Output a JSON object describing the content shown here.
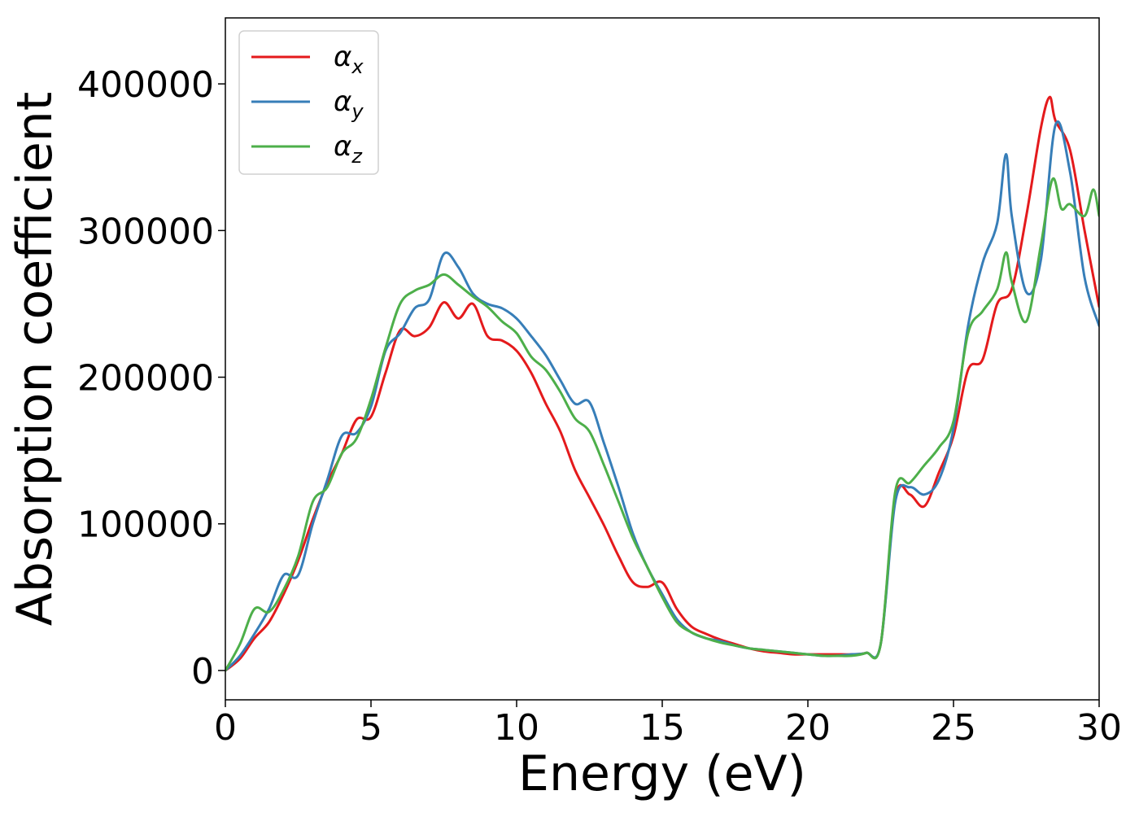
{
  "chart_data": {
    "type": "line",
    "title": "",
    "xlabel": "Energy (eV)",
    "ylabel": "Absorption coefficient",
    "xlim": [
      0,
      30
    ],
    "ylim": [
      -20000,
      445000
    ],
    "xticks": [
      0,
      5,
      10,
      15,
      20,
      25,
      30
    ],
    "yticks": [
      0,
      100000,
      200000,
      300000,
      400000
    ],
    "grid": false,
    "legend_position": "top-left",
    "series": [
      {
        "name": "α",
        "subscript": "x",
        "color": "#e41a1c",
        "x": [
          0,
          0.5,
          1,
          1.5,
          2,
          2.5,
          3,
          3.5,
          4,
          4.5,
          5,
          5.5,
          6,
          6.5,
          7,
          7.5,
          8,
          8.5,
          9,
          9.5,
          10,
          10.5,
          11,
          11.5,
          12,
          12.5,
          13,
          13.5,
          14,
          14.5,
          15,
          15.5,
          16,
          16.5,
          17,
          17.5,
          18,
          18.5,
          19,
          19.5,
          20,
          20.5,
          21,
          21.5,
          22,
          22.5,
          23,
          23.5,
          24,
          24.5,
          25,
          25.5,
          26,
          26.5,
          27,
          27.5,
          28,
          28.3,
          28.5,
          29,
          29.5,
          30
        ],
        "values": [
          0,
          8000,
          22000,
          33000,
          52000,
          75000,
          103000,
          128000,
          148000,
          171000,
          173000,
          203000,
          232000,
          228000,
          234000,
          251000,
          240000,
          250000,
          228000,
          225000,
          218000,
          203000,
          182000,
          163000,
          137000,
          118000,
          99000,
          78000,
          60000,
          57000,
          60000,
          42000,
          30000,
          25000,
          21000,
          18000,
          15000,
          13000,
          12000,
          11000,
          11000,
          11000,
          11000,
          11000,
          12000,
          18000,
          118000,
          120000,
          112000,
          135000,
          160000,
          205000,
          212000,
          250000,
          260000,
          310000,
          370000,
          391000,
          375000,
          355000,
          300000,
          248000
        ]
      },
      {
        "name": "α",
        "subscript": "y",
        "color": "#377eb8",
        "x": [
          0,
          0.5,
          1,
          1.5,
          2,
          2.5,
          3,
          3.5,
          4,
          4.5,
          5,
          5.5,
          6,
          6.5,
          7,
          7.5,
          8,
          8.5,
          9,
          9.5,
          10,
          10.5,
          11,
          11.5,
          12,
          12.5,
          13,
          13.5,
          14,
          14.5,
          15,
          15.5,
          16,
          16.5,
          17,
          17.5,
          18,
          18.5,
          19,
          19.5,
          20,
          20.5,
          21,
          21.5,
          22,
          22.5,
          23,
          23.5,
          24,
          24.5,
          25,
          25.5,
          26,
          26.5,
          26.8,
          27,
          27.5,
          28,
          28.5,
          29,
          29.5,
          30
        ],
        "values": [
          0,
          10000,
          25000,
          42000,
          65000,
          65000,
          100000,
          130000,
          160000,
          162000,
          180000,
          218000,
          230000,
          247000,
          253000,
          284000,
          275000,
          257000,
          250000,
          247000,
          240000,
          228000,
          215000,
          198000,
          182000,
          183000,
          155000,
          125000,
          93000,
          70000,
          52000,
          35000,
          26000,
          22000,
          20000,
          17000,
          15000,
          14000,
          13000,
          12000,
          11000,
          10000,
          10000,
          11000,
          12000,
          18000,
          115000,
          125000,
          120000,
          130000,
          165000,
          235000,
          278000,
          305000,
          352000,
          310000,
          258000,
          280000,
          372000,
          340000,
          268000,
          235000
        ]
      },
      {
        "name": "α",
        "subscript": "z",
        "color": "#4daf4a",
        "x": [
          0,
          0.5,
          1,
          1.5,
          2,
          2.5,
          3,
          3.5,
          4,
          4.5,
          5,
          5.5,
          6,
          6.5,
          7,
          7.5,
          8,
          8.5,
          9,
          9.5,
          10,
          10.5,
          11,
          11.5,
          12,
          12.5,
          13,
          13.5,
          14,
          14.5,
          15,
          15.5,
          16,
          16.5,
          17,
          17.5,
          18,
          18.5,
          19,
          19.5,
          20,
          20.5,
          21,
          21.5,
          22,
          22.5,
          23,
          23.5,
          24,
          24.5,
          25,
          25.5,
          26,
          26.5,
          26.8,
          27,
          27.5,
          28,
          28.4,
          28.7,
          29,
          29.5,
          29.8,
          30
        ],
        "values": [
          0,
          18000,
          42000,
          40000,
          55000,
          78000,
          115000,
          125000,
          148000,
          158000,
          185000,
          220000,
          250000,
          259000,
          263000,
          270000,
          263000,
          255000,
          248000,
          238000,
          230000,
          214000,
          205000,
          190000,
          172000,
          163000,
          140000,
          115000,
          90000,
          70000,
          50000,
          33000,
          26000,
          22000,
          19000,
          17000,
          15000,
          14000,
          13000,
          12000,
          11000,
          10000,
          10000,
          10000,
          12000,
          18000,
          122000,
          128000,
          140000,
          152000,
          170000,
          230000,
          245000,
          260000,
          285000,
          265000,
          238000,
          290000,
          335000,
          315000,
          318000,
          310000,
          328000,
          310000
        ]
      }
    ]
  }
}
